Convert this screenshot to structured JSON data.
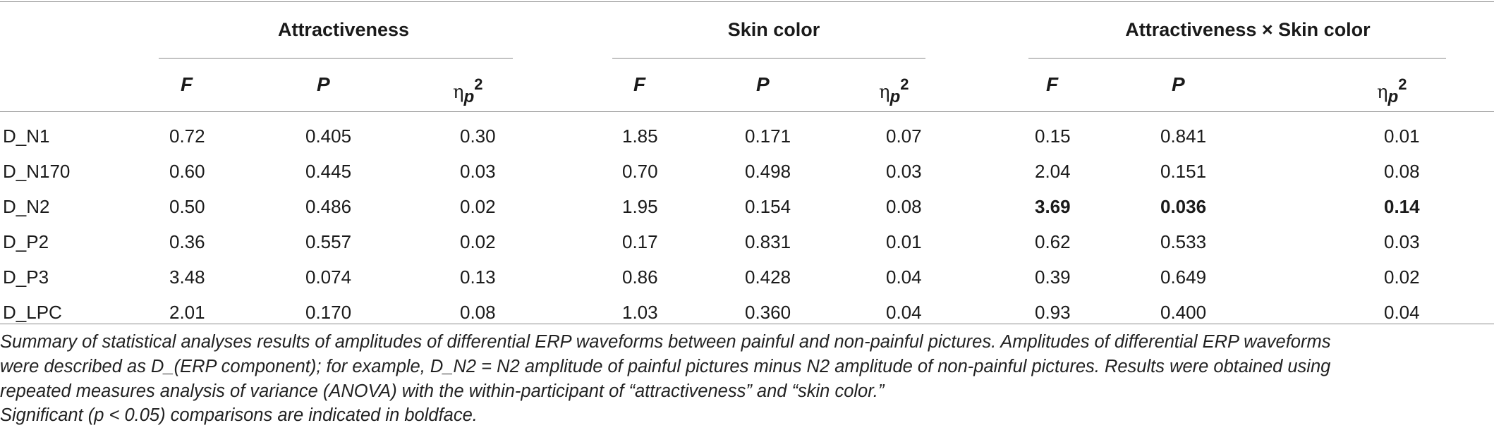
{
  "table": {
    "groups": [
      "Attractiveness",
      "Skin color",
      "Attractiveness × Skin color"
    ],
    "stat_headers": {
      "f": "F",
      "p": "P",
      "eta": "η",
      "eta_sub": "p",
      "eta_sup": "2"
    },
    "rows": [
      {
        "label": "D_N1",
        "values": [
          "0.72",
          "0.405",
          "0.30",
          "1.85",
          "0.171",
          "0.07",
          "0.15",
          "0.841",
          "0.01"
        ]
      },
      {
        "label": "D_N170",
        "values": [
          "0.60",
          "0.445",
          "0.03",
          "0.70",
          "0.498",
          "0.03",
          "2.04",
          "0.151",
          "0.08"
        ]
      },
      {
        "label": "D_N2",
        "values": [
          "0.50",
          "0.486",
          "0.02",
          "1.95",
          "0.154",
          "0.08",
          "3.69",
          "0.036",
          "0.14"
        ]
      },
      {
        "label": "D_P2",
        "values": [
          "0.36",
          "0.557",
          "0.02",
          "0.17",
          "0.831",
          "0.01",
          "0.62",
          "0.533",
          "0.03"
        ]
      },
      {
        "label": "D_P3",
        "values": [
          "3.48",
          "0.074",
          "0.13",
          "0.86",
          "0.428",
          "0.04",
          "0.39",
          "0.649",
          "0.02"
        ]
      },
      {
        "label": "D_LPC",
        "values": [
          "2.01",
          "0.170",
          "0.08",
          "1.03",
          "0.360",
          "0.04",
          "0.93",
          "0.400",
          "0.04"
        ]
      }
    ],
    "bold_cells": [
      [
        2,
        6
      ],
      [
        2,
        7
      ],
      [
        2,
        8
      ]
    ]
  },
  "footnote": {
    "lines": [
      "Summary of statistical analyses results of amplitudes of differential ERP waveforms between painful and non-painful pictures. Amplitudes of differential ERP waveforms",
      "were described as D_(ERP component); for example, D_N2 = N2 amplitude of painful pictures minus N2 amplitude of non-painful pictures. Results were obtained using",
      "repeated measures analysis of variance (ANOVA) with the within-participant of “attractiveness” and “skin color.”",
      "Significant (p < 0.05) comparisons are indicated in boldface."
    ]
  }
}
